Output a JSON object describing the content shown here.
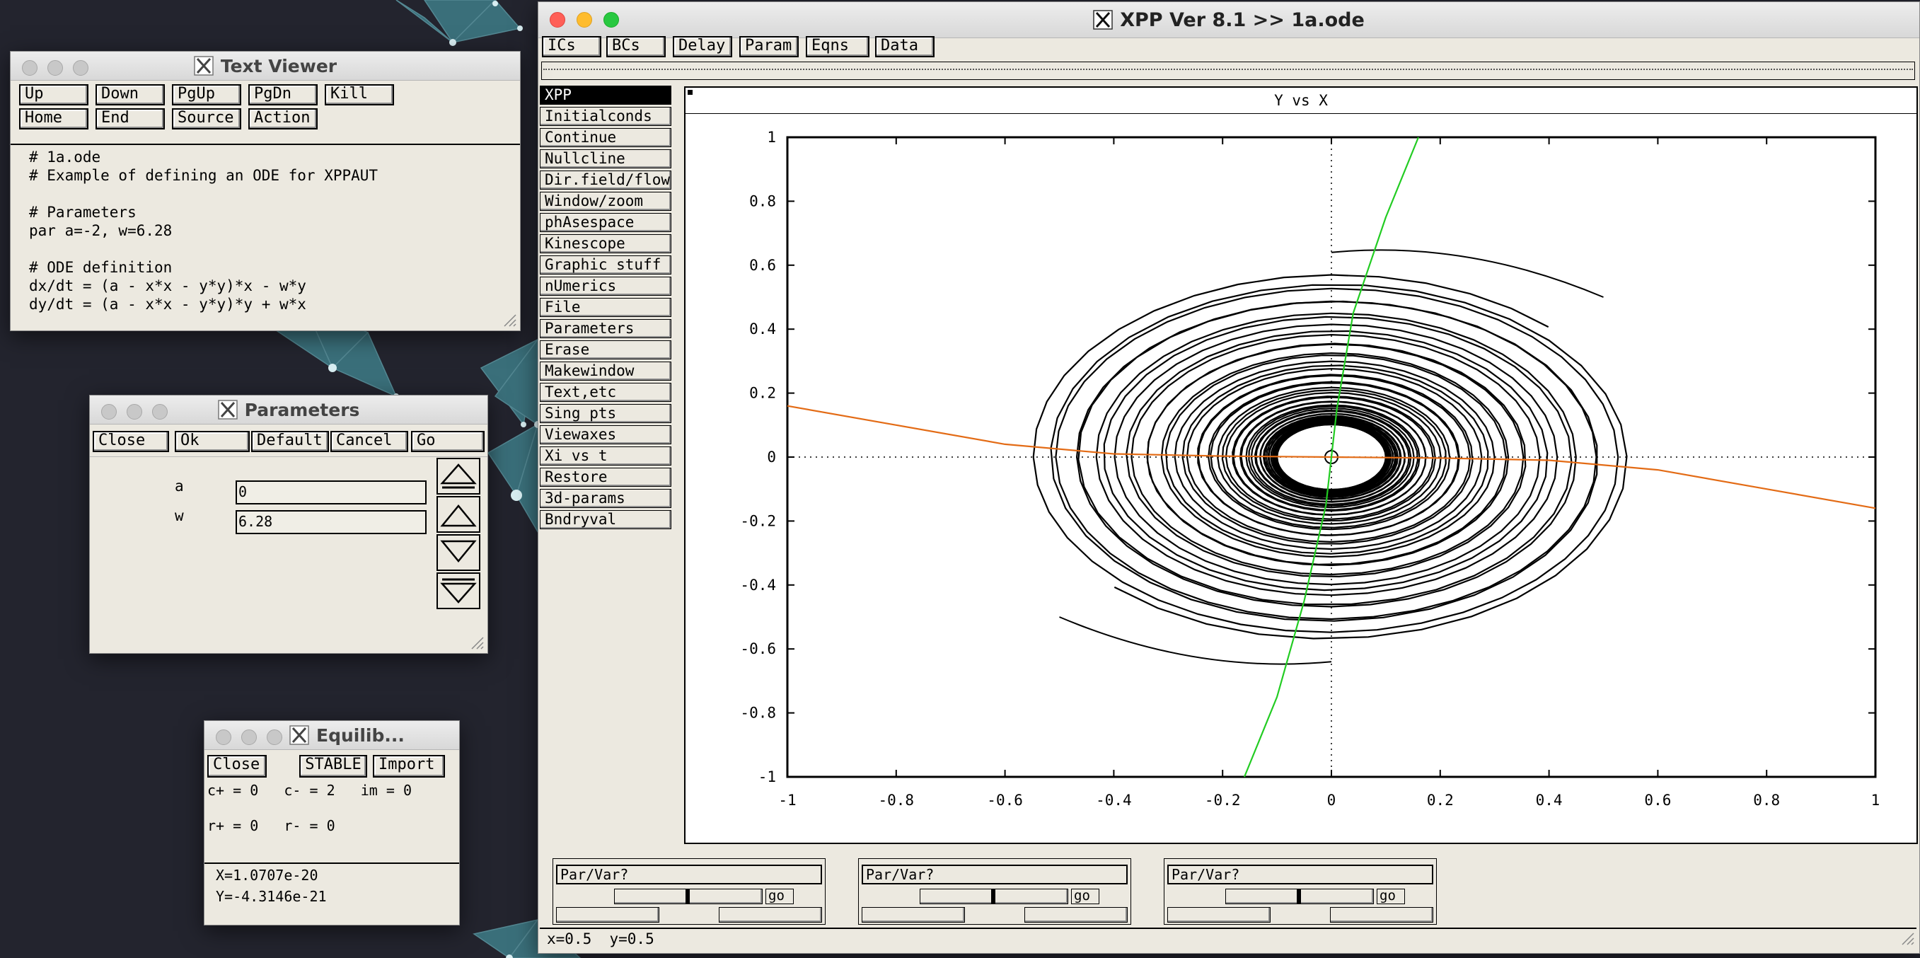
{
  "xpp": {
    "title": "XPP Ver 8.1 >> 1a.ode",
    "toolbar": [
      "ICs",
      "BCs",
      "Delay",
      "Param",
      "Eqns",
      "Data"
    ],
    "menu": [
      "XPP",
      "Initialconds",
      "Continue",
      "Nullcline",
      "Dir.field/flow",
      "Window/zoom",
      "phAsespace",
      "Kinescope",
      "Graphic stuff",
      "nUmerics",
      "File",
      "Parameters",
      "Erase",
      "Makewindow",
      "Text,etc",
      "Sing pts",
      "Viewaxes",
      "Xi vs t",
      "Restore",
      "3d-params",
      "Bndryval"
    ],
    "sliders": [
      {
        "label": "Par/Var?",
        "go": "go"
      },
      {
        "label": "Par/Var?",
        "go": "go"
      },
      {
        "label": "Par/Var?",
        "go": "go"
      }
    ],
    "status": "x=0.5  y=0.5"
  },
  "chart_data": {
    "type": "line",
    "title": "Y vs X",
    "xlim": [
      -1,
      1
    ],
    "ylim": [
      -1,
      1
    ],
    "x_ticks": [
      "-1",
      "-0.8",
      "-0.6",
      "-0.4",
      "-0.2",
      "0",
      "0.2",
      "0.4",
      "0.6",
      "0.8",
      "1"
    ],
    "y_ticks": [
      "1",
      "0.8",
      "0.6",
      "0.4",
      "0.2",
      "0",
      "-0.2",
      "-0.4",
      "-0.6",
      "-0.8",
      "-1"
    ],
    "series": [
      {
        "color": "#e36b15",
        "kind": "nullcline",
        "x": [
          -1,
          -0.8,
          -0.6,
          -0.4,
          -0.2,
          0,
          0.2,
          0.4,
          0.6,
          0.8,
          1
        ],
        "y": [
          0.16,
          0.1,
          0.04,
          0.01,
          0.003,
          0,
          -0.003,
          -0.01,
          -0.04,
          -0.1,
          -0.16
        ]
      },
      {
        "color": "#22cc22",
        "kind": "nullcline",
        "x": [
          -0.16,
          -0.1,
          -0.05,
          -0.01,
          0,
          0.01,
          0.04,
          0.1,
          0.16
        ],
        "y": [
          -1,
          -0.75,
          -0.45,
          -0.15,
          0,
          0.15,
          0.45,
          0.75,
          1
        ]
      },
      {
        "color": "#000000",
        "kind": "trajectory",
        "start": [
          0.5,
          0.5
        ],
        "end": [
          -0.5,
          -0.5
        ],
        "outer_radius": 0.6,
        "inner_radius": 0.1
      }
    ]
  },
  "textviewer": {
    "title": "Text Viewer",
    "buttons_row1": [
      "Up",
      "Down",
      "PgUp",
      "PgDn",
      "Kill"
    ],
    "buttons_row2": [
      "Home",
      "End",
      "Source",
      "Action"
    ],
    "lines": [
      "# 1a.ode",
      "# Example of defining an ODE for XPPAUT",
      "",
      "# Parameters",
      "par a=-2, w=6.28",
      "",
      "# ODE definition",
      "dx/dt = (a - x*x - y*y)*x - w*y",
      "dy/dt = (a - x*x - y*y)*y + w*x"
    ]
  },
  "params": {
    "title": "Parameters",
    "buttons": [
      "Close",
      "Ok",
      "Default",
      "Cancel",
      "Go"
    ],
    "fields": [
      {
        "name": "a",
        "value": "0"
      },
      {
        "name": "w",
        "value": "6.28"
      }
    ]
  },
  "equilib": {
    "title": "Equilib...",
    "buttons": [
      "Close",
      "STABLE",
      "Import"
    ],
    "line1": "c+ = 0   c- = 2   im = 0",
    "line2": "r+ = 0   r- = 0",
    "x": "X=1.0707e-20",
    "y": "Y=-4.3146e-21"
  },
  "colors": {
    "desktop": "#23242e",
    "window_bg": "#ece9e0",
    "nullcline_x": "#e36b15",
    "nullcline_y": "#22cc22",
    "teal_network": "#6fb6c0"
  }
}
